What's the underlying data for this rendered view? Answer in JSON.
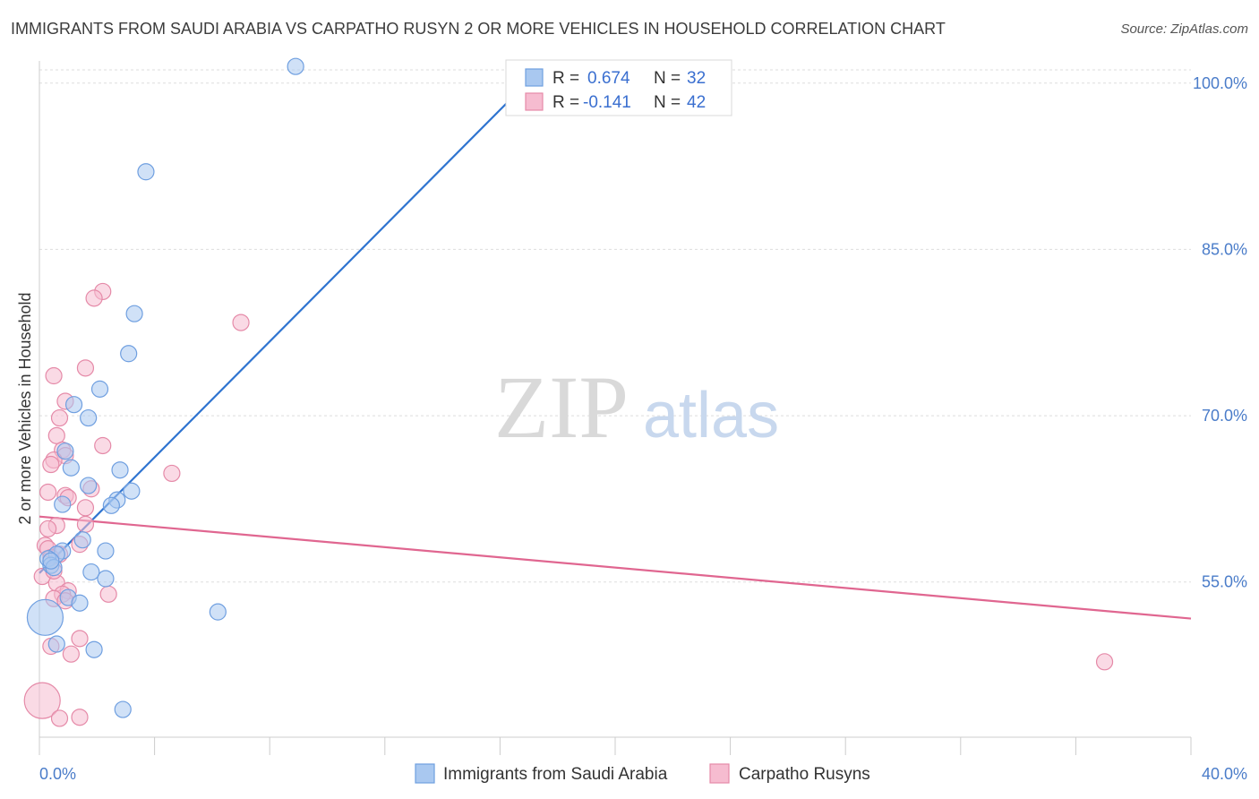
{
  "title": "IMMIGRANTS FROM SAUDI ARABIA VS CARPATHO RUSYN 2 OR MORE VEHICLES IN HOUSEHOLD CORRELATION CHART",
  "source": "Source: ZipAtlas.com",
  "watermark": {
    "zip": "ZIP",
    "atlas": "atlas"
  },
  "colors": {
    "blue_fill": "#a9c8f0",
    "blue_stroke": "#6f9fe0",
    "blue_line": "#2f74d0",
    "pink_fill": "#f6bcd0",
    "pink_stroke": "#e58aa8",
    "pink_line": "#e06690",
    "axis_text": "#4a7cc9"
  },
  "legend_box": {
    "rows": [
      {
        "r_label": "R =",
        "r_value": "0.674",
        "n_label": "N =",
        "n_value": "32"
      },
      {
        "r_label": "R =",
        "r_value": "-0.141",
        "n_label": "N =",
        "n_value": "42"
      }
    ]
  },
  "bottom_legend": [
    "Immigrants from Saudi Arabia",
    "Carpatho Rusyns"
  ],
  "chart_data": {
    "type": "scatter",
    "title": "IMMIGRANTS FROM SAUDI ARABIA VS CARPATHO RUSYN 2 OR MORE VEHICLES IN HOUSEHOLD CORRELATION CHART",
    "xlabel": "",
    "ylabel": "2 or more Vehicles in Household",
    "xlim": [
      0,
      40
    ],
    "ylim": [
      41.0,
      102.0
    ],
    "x_tick_labels": [
      "0.0%",
      "40.0%"
    ],
    "y_ticks": [
      55,
      70,
      85,
      100
    ],
    "y_tick_labels": [
      "55.0%",
      "70.0%",
      "85.0%",
      "100.0%"
    ],
    "grid": true,
    "series": [
      {
        "name": "Immigrants from Saudi Arabia",
        "R": 0.674,
        "N": 32,
        "trend": {
          "x0": 0.0,
          "y0": 55.8,
          "x1": 17.5,
          "y1": 101.5
        },
        "points": [
          {
            "x": 8.9,
            "y": 101.5
          },
          {
            "x": 3.7,
            "y": 92.0
          },
          {
            "x": 3.3,
            "y": 79.2
          },
          {
            "x": 3.1,
            "y": 75.6
          },
          {
            "x": 2.1,
            "y": 72.4
          },
          {
            "x": 1.2,
            "y": 71.0
          },
          {
            "x": 1.7,
            "y": 69.8
          },
          {
            "x": 0.9,
            "y": 66.8
          },
          {
            "x": 1.1,
            "y": 65.3
          },
          {
            "x": 2.8,
            "y": 65.1
          },
          {
            "x": 1.7,
            "y": 63.7
          },
          {
            "x": 3.2,
            "y": 63.2
          },
          {
            "x": 2.7,
            "y": 62.4
          },
          {
            "x": 0.8,
            "y": 62.0
          },
          {
            "x": 2.5,
            "y": 61.9
          },
          {
            "x": 1.5,
            "y": 58.8
          },
          {
            "x": 0.8,
            "y": 57.8
          },
          {
            "x": 2.3,
            "y": 57.8
          },
          {
            "x": 0.6,
            "y": 57.5
          },
          {
            "x": 0.3,
            "y": 57.1
          },
          {
            "x": 0.4,
            "y": 56.5
          },
          {
            "x": 0.5,
            "y": 56.3
          },
          {
            "x": 1.8,
            "y": 55.9
          },
          {
            "x": 2.3,
            "y": 55.3
          },
          {
            "x": 1.0,
            "y": 53.6
          },
          {
            "x": 1.4,
            "y": 53.1
          },
          {
            "x": 6.2,
            "y": 52.3
          },
          {
            "x": 0.2,
            "y": 51.8,
            "big": true
          },
          {
            "x": 0.6,
            "y": 49.4
          },
          {
            "x": 1.9,
            "y": 48.9
          },
          {
            "x": 2.9,
            "y": 43.5
          },
          {
            "x": 0.4,
            "y": 56.9
          }
        ]
      },
      {
        "name": "Carpatho Rusyns",
        "R": -0.141,
        "N": 42,
        "trend": {
          "x0": 0.0,
          "y0": 60.9,
          "x1": 40.0,
          "y1": 51.7
        },
        "points": [
          {
            "x": 2.2,
            "y": 81.2
          },
          {
            "x": 1.9,
            "y": 80.6
          },
          {
            "x": 7.0,
            "y": 78.4
          },
          {
            "x": 1.6,
            "y": 74.3
          },
          {
            "x": 0.5,
            "y": 73.6
          },
          {
            "x": 0.9,
            "y": 71.3
          },
          {
            "x": 0.7,
            "y": 69.8
          },
          {
            "x": 0.6,
            "y": 68.2
          },
          {
            "x": 2.2,
            "y": 67.3
          },
          {
            "x": 0.8,
            "y": 66.9
          },
          {
            "x": 0.9,
            "y": 66.4
          },
          {
            "x": 0.5,
            "y": 66.0
          },
          {
            "x": 0.4,
            "y": 65.6
          },
          {
            "x": 4.6,
            "y": 64.8
          },
          {
            "x": 1.8,
            "y": 63.4
          },
          {
            "x": 0.3,
            "y": 63.1
          },
          {
            "x": 0.9,
            "y": 62.8
          },
          {
            "x": 1.0,
            "y": 62.6
          },
          {
            "x": 1.6,
            "y": 61.7
          },
          {
            "x": 1.6,
            "y": 60.2
          },
          {
            "x": 0.6,
            "y": 60.1
          },
          {
            "x": 0.3,
            "y": 59.8
          },
          {
            "x": 1.4,
            "y": 58.4
          },
          {
            "x": 0.2,
            "y": 58.3
          },
          {
            "x": 0.3,
            "y": 58.0
          },
          {
            "x": 0.7,
            "y": 57.5
          },
          {
            "x": 0.4,
            "y": 57.2
          },
          {
            "x": 0.1,
            "y": 55.5
          },
          {
            "x": 0.6,
            "y": 54.9
          },
          {
            "x": 1.0,
            "y": 54.2
          },
          {
            "x": 0.8,
            "y": 53.9
          },
          {
            "x": 2.4,
            "y": 53.9
          },
          {
            "x": 0.5,
            "y": 53.5
          },
          {
            "x": 0.9,
            "y": 53.3
          },
          {
            "x": 1.4,
            "y": 49.9
          },
          {
            "x": 0.4,
            "y": 49.2
          },
          {
            "x": 1.1,
            "y": 48.5
          },
          {
            "x": 37.0,
            "y": 47.8
          },
          {
            "x": 0.1,
            "y": 44.3,
            "big": true
          },
          {
            "x": 0.7,
            "y": 42.7
          },
          {
            "x": 1.4,
            "y": 42.8
          },
          {
            "x": 0.5,
            "y": 56.0
          }
        ]
      }
    ]
  }
}
